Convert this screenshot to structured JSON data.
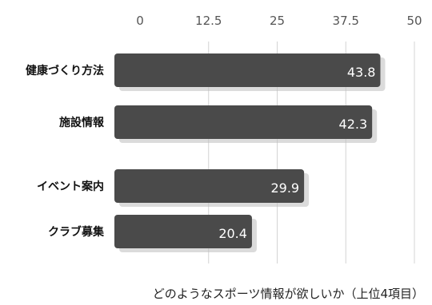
{
  "chart_data": {
    "type": "bar",
    "orientation": "horizontal",
    "categories": [
      "健康づくり方法",
      "施設情報",
      "イベント案内",
      "クラブ募集"
    ],
    "values": [
      43.8,
      42.3,
      29.9,
      20.4
    ],
    "xlim": [
      0,
      50
    ],
    "xticks": [
      "0",
      "12.5",
      "25",
      "37.5",
      "50"
    ],
    "xtick_values": [
      0,
      12.5,
      25,
      37.5,
      50
    ],
    "grid": true,
    "bar_color": "#4a4a4a",
    "title": "",
    "caption": "どのようなスポーツ情報が欲しいか（上位4項目）"
  }
}
